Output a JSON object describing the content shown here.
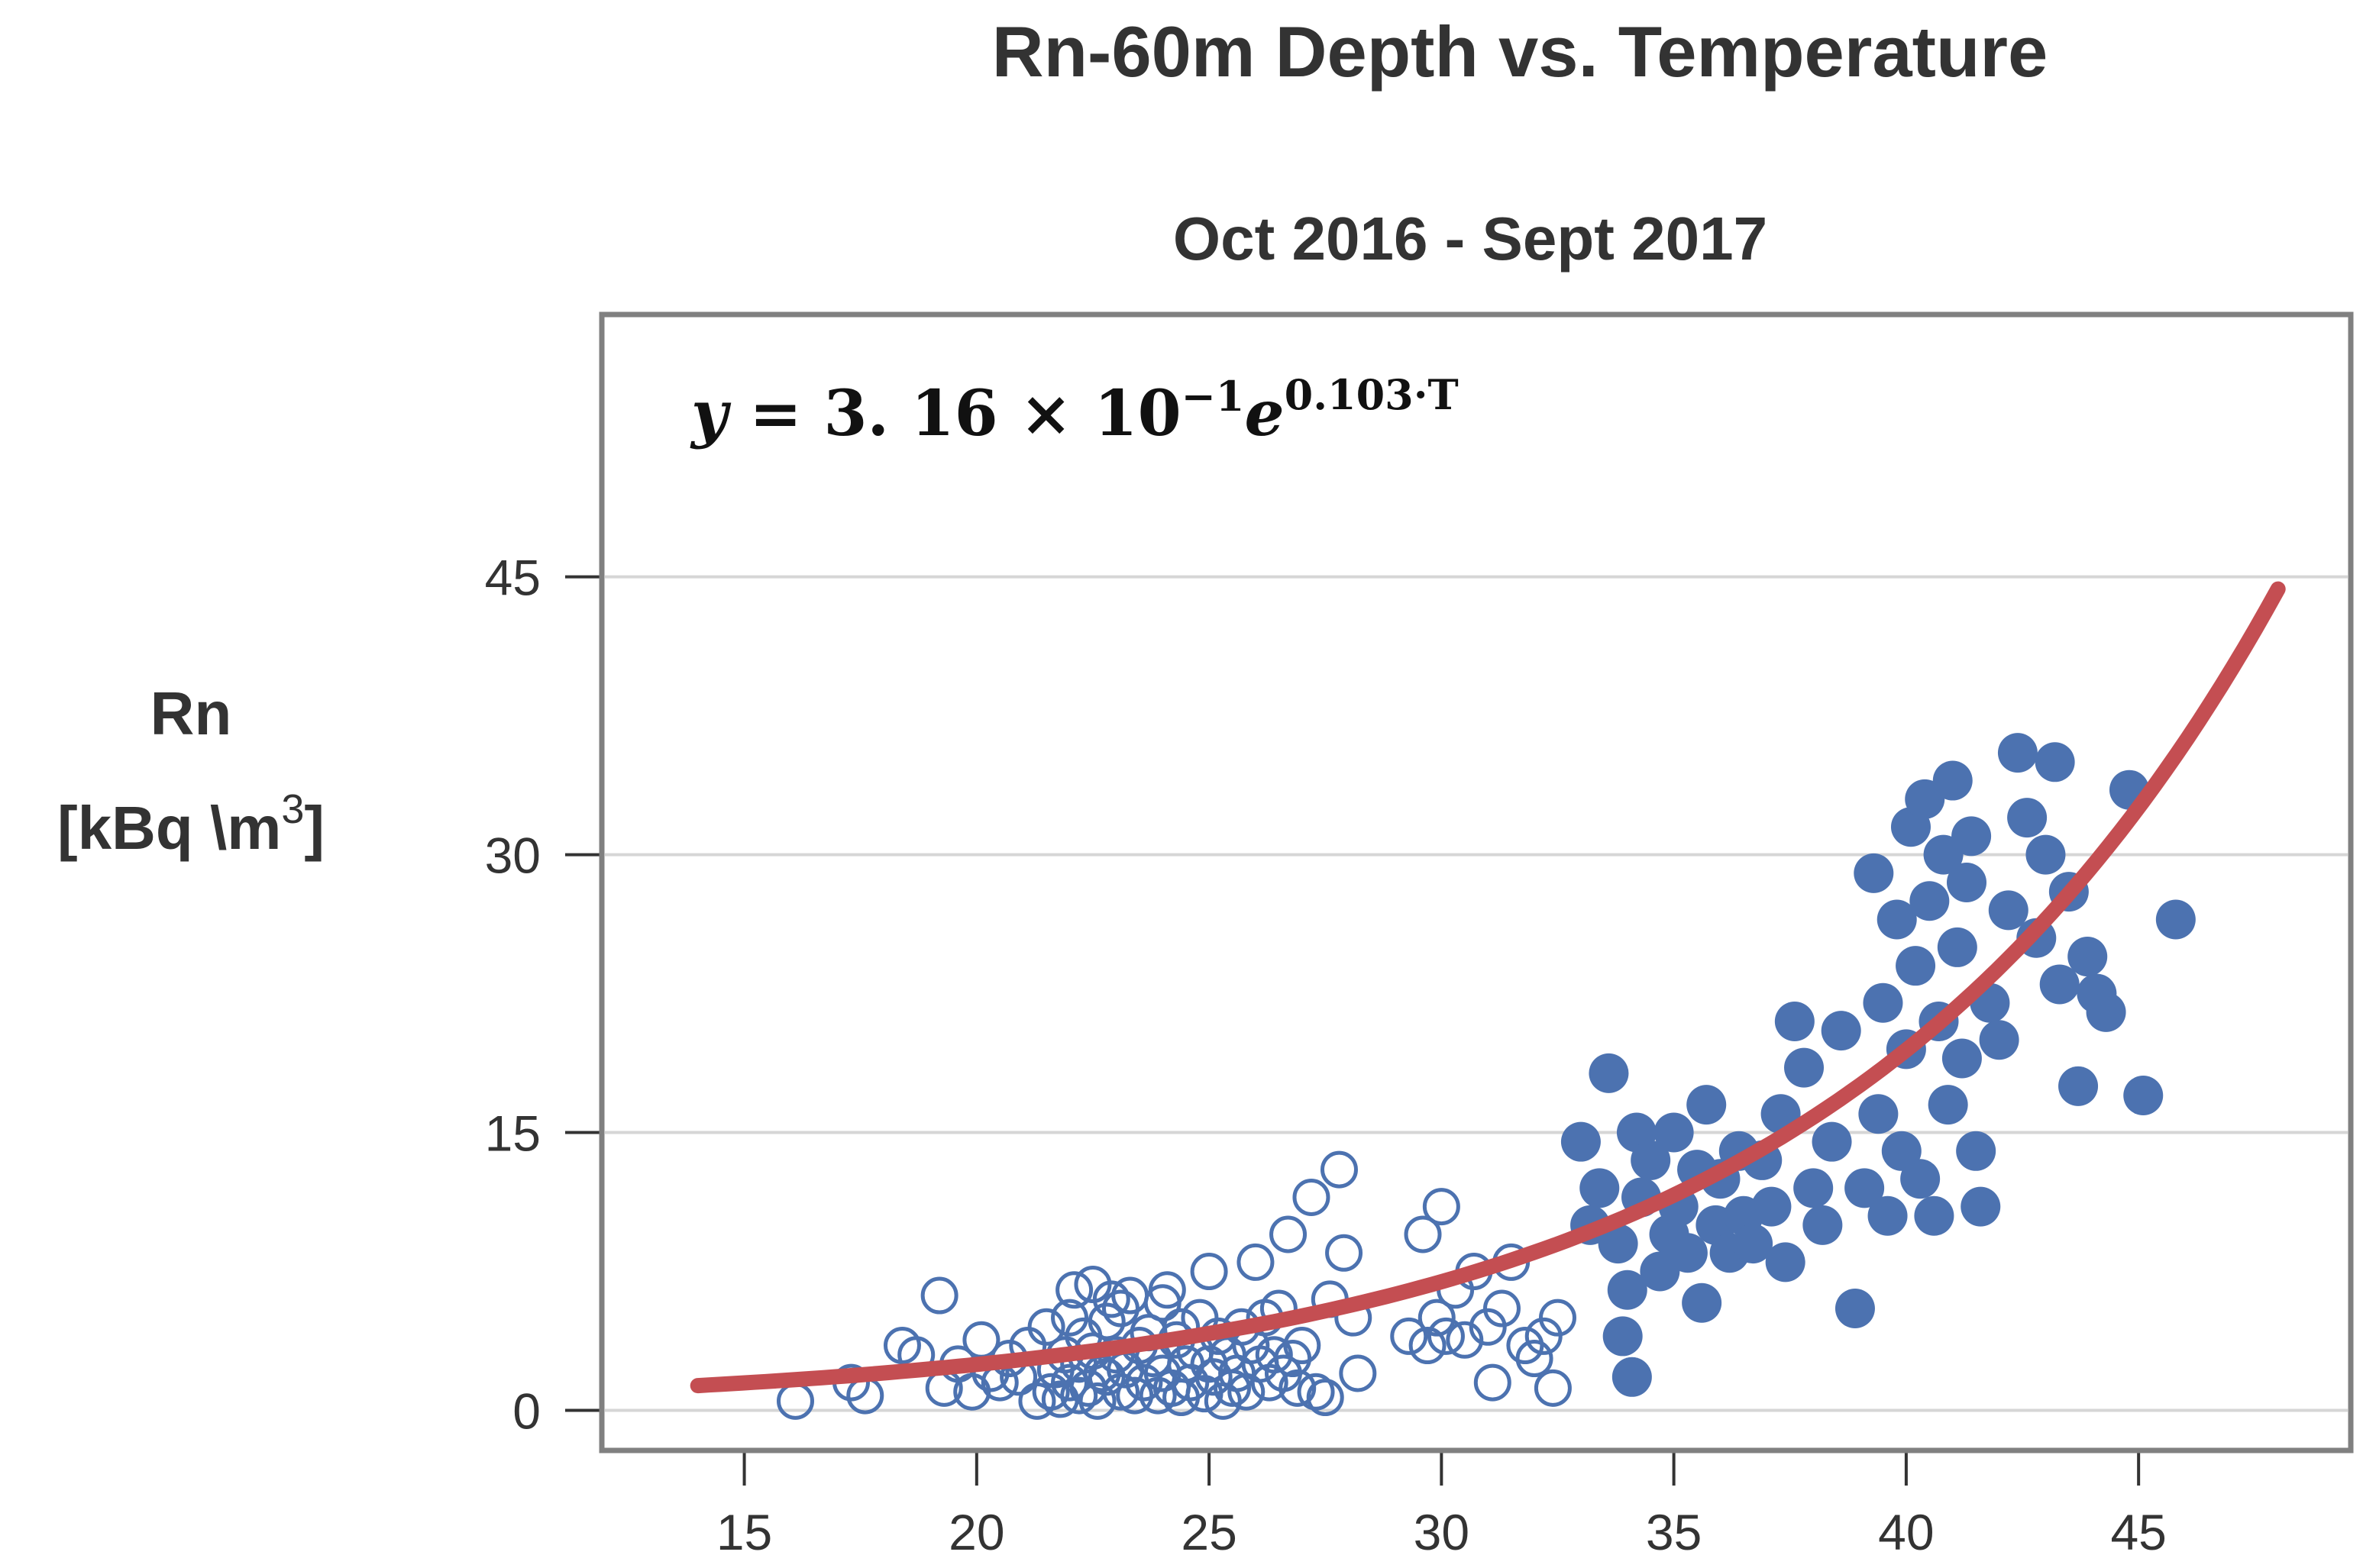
{
  "chart_data": {
    "type": "scatter",
    "title": "Rn-60m Depth vs. Temperature",
    "subtitle": "Oct 2016 - Sept 2017",
    "xlabel": "",
    "ylabel_line1": "Rn",
    "ylabel_line2_main": "[kBq \\m",
    "ylabel_line2_sup": "3",
    "ylabel_line2_end": "]",
    "equation": {
      "lhs": "y",
      "eq": " = ",
      "coef": "3. 16",
      "times": " × 10",
      "exp10": "−1",
      "base": "e",
      "exponent": "0.103·T"
    },
    "xlim": [
      12,
      49.5
    ],
    "ylim": [
      -2,
      59
    ],
    "xticks": [
      15,
      20,
      25,
      30,
      35,
      40,
      45
    ],
    "yticks": [
      0,
      15,
      30,
      45
    ],
    "grid": "horizontal",
    "colors": {
      "points": "#4c72b0",
      "fit": "#c44e52",
      "grid": "#d6d6d6",
      "frame": "#808080",
      "text": "#333333"
    },
    "fit": {
      "a": 0.316,
      "b": 0.103,
      "x_range": [
        14,
        48
      ]
    },
    "series": [
      {
        "name": "open",
        "style": "hollow",
        "x": [
          16.1,
          17.3,
          17.6,
          18.4,
          18.7,
          19.2,
          19.3,
          19.6,
          19.9,
          20.1,
          20.3,
          20.5,
          20.7,
          20.9,
          21.1,
          21.3,
          21.5,
          21.6,
          21.7,
          21.8,
          21.9,
          22.0,
          22.0,
          22.1,
          22.2,
          22.2,
          22.3,
          22.4,
          22.5,
          22.5,
          22.6,
          22.7,
          22.8,
          22.8,
          22.9,
          23.0,
          23.1,
          23.1,
          23.2,
          23.3,
          23.4,
          23.5,
          23.6,
          23.7,
          23.8,
          23.9,
          24.0,
          24.0,
          24.1,
          24.2,
          24.3,
          24.4,
          24.4,
          24.5,
          24.6,
          24.7,
          24.8,
          24.9,
          25.0,
          25.0,
          25.1,
          25.2,
          25.3,
          25.4,
          25.5,
          25.6,
          25.7,
          25.8,
          25.9,
          26.0,
          26.1,
          26.2,
          26.3,
          26.4,
          26.5,
          26.6,
          26.7,
          26.8,
          26.9,
          27.0,
          27.2,
          27.3,
          27.5,
          27.6,
          27.8,
          27.9,
          28.1,
          28.2,
          29.3,
          29.6,
          29.7,
          29.9,
          30.0,
          30.1,
          30.3,
          30.5,
          30.7,
          31.0,
          31.1,
          31.3,
          31.5,
          31.8,
          32.0,
          32.2,
          32.4,
          32.5
        ],
        "y": [
          0.5,
          1.5,
          0.8,
          3.5,
          3.0,
          6.2,
          1.2,
          2.5,
          1.0,
          3.8,
          2.0,
          1.5,
          2.8,
          1.8,
          3.5,
          0.5,
          4.5,
          1.0,
          2.2,
          0.6,
          3.0,
          5.0,
          1.5,
          6.5,
          2.5,
          0.8,
          4.0,
          1.2,
          3.2,
          6.8,
          0.5,
          2.0,
          4.8,
          1.8,
          6.0,
          3.0,
          1.0,
          5.5,
          2.2,
          6.2,
          0.8,
          3.5,
          1.5,
          4.2,
          2.8,
          0.8,
          5.8,
          2.0,
          6.5,
          1.2,
          3.8,
          4.5,
          0.7,
          2.5,
          1.5,
          3.2,
          5.0,
          0.9,
          2.5,
          7.5,
          1.8,
          4.0,
          0.5,
          3.0,
          1.2,
          2.0,
          4.5,
          1.0,
          3.5,
          8.0,
          2.5,
          5.0,
          1.5,
          3.0,
          5.5,
          2.0,
          9.5,
          2.8,
          1.2,
          3.5,
          11.5,
          1.0,
          0.7,
          6.0,
          13.0,
          8.5,
          5.0,
          2.0,
          4.0,
          9.5,
          3.5,
          5.0,
          11.0,
          4.0,
          6.5,
          3.8,
          7.5,
          4.5,
          1.5,
          5.5,
          8.0,
          3.5,
          2.8,
          4.0,
          1.2,
          5.0
        ]
      },
      {
        "name": "filled",
        "style": "filled",
        "x": [
          33.0,
          33.2,
          33.4,
          33.6,
          33.8,
          33.9,
          34.0,
          34.1,
          34.2,
          34.3,
          34.5,
          34.7,
          34.9,
          35.0,
          35.1,
          35.3,
          35.5,
          35.6,
          35.7,
          35.9,
          36.0,
          36.2,
          36.4,
          36.5,
          36.7,
          36.9,
          37.1,
          37.3,
          37.4,
          37.6,
          37.8,
          38.0,
          38.2,
          38.4,
          38.6,
          38.9,
          39.1,
          39.3,
          39.4,
          39.5,
          39.6,
          39.8,
          39.9,
          40.0,
          40.1,
          40.2,
          40.3,
          40.4,
          40.5,
          40.6,
          40.7,
          40.8,
          40.9,
          41.0,
          41.1,
          41.2,
          41.3,
          41.4,
          41.5,
          41.6,
          41.8,
          42.0,
          42.2,
          42.4,
          42.6,
          42.8,
          43.0,
          43.2,
          43.3,
          43.5,
          43.7,
          43.9,
          44.1,
          44.3,
          44.8,
          45.1,
          45.8
        ],
        "y": [
          14.5,
          10.0,
          12.0,
          18.2,
          9.0,
          4.0,
          6.5,
          1.8,
          15.0,
          11.5,
          13.5,
          7.5,
          9.5,
          15.0,
          11.0,
          8.5,
          13.0,
          5.8,
          16.5,
          10.0,
          12.5,
          8.5,
          14.0,
          10.5,
          9.0,
          13.5,
          11.0,
          16.0,
          8.0,
          21.0,
          18.5,
          12.0,
          10.0,
          14.5,
          20.5,
          5.5,
          12.0,
          29.0,
          16.0,
          22.0,
          10.5,
          26.5,
          14.0,
          19.5,
          31.5,
          24.0,
          12.5,
          33.0,
          27.5,
          10.5,
          21.0,
          30.0,
          16.5,
          34.0,
          25.0,
          19.0,
          28.5,
          31.0,
          14.0,
          11.0,
          22.0,
          20.0,
          27.0,
          35.5,
          32.0,
          25.5,
          30.0,
          35.0,
          23.0,
          28.0,
          17.5,
          24.5,
          22.5,
          21.5,
          33.5,
          17.0,
          26.5
        ]
      }
    ]
  }
}
